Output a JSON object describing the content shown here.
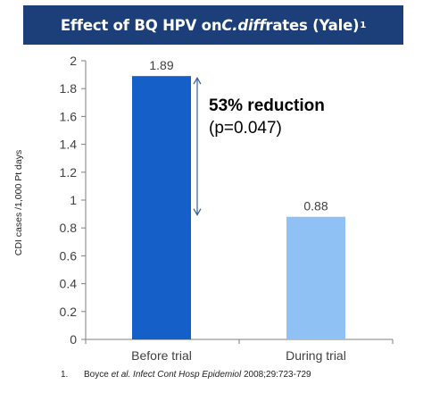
{
  "title": {
    "prefix": "Effect of BQ HPV on ",
    "italic": "C.diff",
    "suffix": " rates (Yale)",
    "superscript": "1"
  },
  "chart_data": {
    "type": "bar",
    "categories": [
      "Before trial",
      "During trial"
    ],
    "values": [
      1.89,
      0.88
    ],
    "data_labels": [
      "1.89",
      "0.88"
    ],
    "ylabel": "CDI cases /1,000 Pt days",
    "xlabel": "",
    "ylim": [
      0,
      2
    ],
    "yticks": [
      0,
      0.2,
      0.4,
      0.6,
      0.8,
      1,
      1.2,
      1.4,
      1.6,
      1.8,
      2
    ],
    "ytick_labels": [
      "0",
      "0.2",
      "0.4",
      "0.6",
      "0.8",
      "1",
      "1.2",
      "1.4",
      "1.6",
      "1.8",
      "2"
    ],
    "bar_colors": [
      "#1560c8",
      "#8fc1f4"
    ],
    "grid": false,
    "annotation": {
      "headline": "53% reduction",
      "detail": "(p=0.047)",
      "arrow_from": 1.89,
      "arrow_to": 0.88
    }
  },
  "footnote": {
    "number": "1.",
    "authors": "Boyce ",
    "etal": "et al.",
    "journal": " Infect Cont Hosp Epidemiol",
    "citation": " 2008;29:723-729"
  }
}
